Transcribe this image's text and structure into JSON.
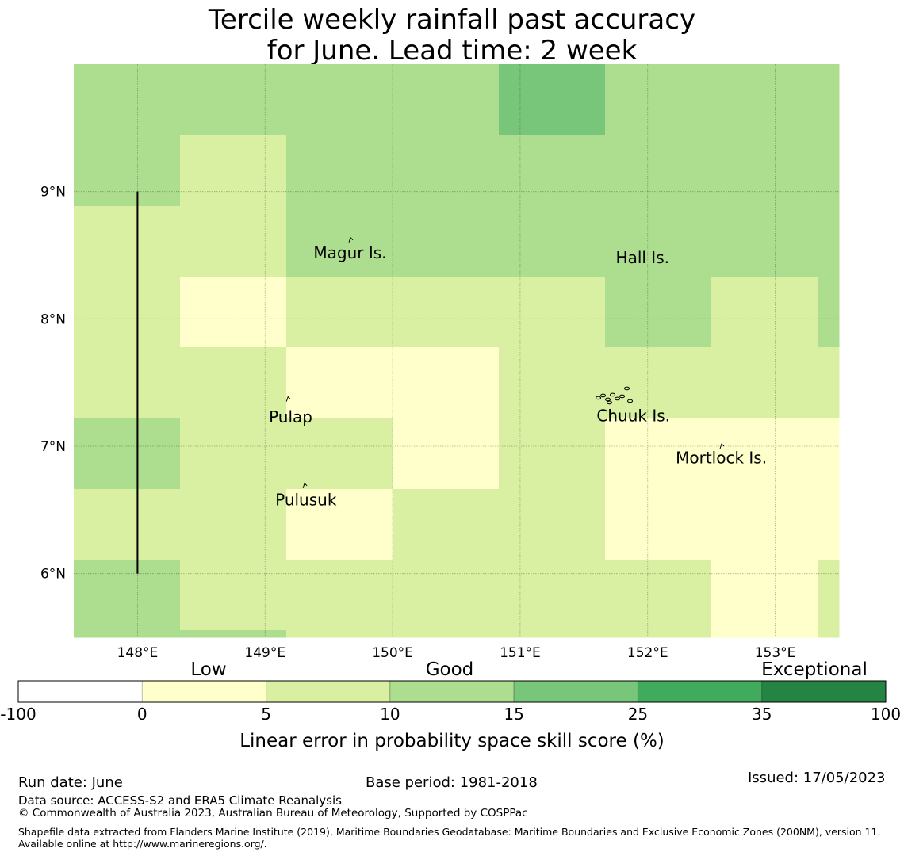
{
  "title": {
    "line1": "Tercile weekly rainfall past accuracy",
    "line2": "for June. Lead time: 2 week"
  },
  "map": {
    "lon_range": [
      147.5,
      153.5
    ],
    "lat_range": [
      5.5,
      10.0
    ],
    "lon_ticks": [
      {
        "value": 148,
        "label": "148°E"
      },
      {
        "value": 149,
        "label": "149°E"
      },
      {
        "value": 150,
        "label": "150°E"
      },
      {
        "value": 151,
        "label": "151°E"
      },
      {
        "value": 152,
        "label": "152°E"
      },
      {
        "value": 153,
        "label": "153°E"
      }
    ],
    "lat_ticks": [
      {
        "value": 9,
        "label": "9°N"
      },
      {
        "value": 8,
        "label": "8°N"
      },
      {
        "value": 7,
        "label": "7°N"
      },
      {
        "value": 6,
        "label": "6°N"
      }
    ],
    "grid_lons": [
      147.5,
      148.333,
      149.167,
      150.0,
      150.833,
      151.667,
      152.5,
      153.333,
      153.5
    ],
    "grid_lats": [
      10.0,
      9.444,
      8.889,
      8.333,
      7.778,
      7.222,
      6.667,
      6.111,
      5.556,
      5.5
    ],
    "skill_grid": [
      [
        3,
        3,
        3,
        3,
        4,
        3,
        3,
        3
      ],
      [
        3,
        2,
        3,
        3,
        3,
        3,
        3,
        3
      ],
      [
        2,
        2,
        3,
        3,
        3,
        3,
        3,
        3
      ],
      [
        2,
        1,
        2,
        2,
        2,
        3,
        2,
        3
      ],
      [
        2,
        2,
        1,
        1,
        2,
        2,
        2,
        2
      ],
      [
        3,
        2,
        2,
        1,
        2,
        1,
        1,
        1
      ],
      [
        2,
        2,
        1,
        2,
        2,
        1,
        1,
        1
      ],
      [
        3,
        2,
        2,
        2,
        2,
        2,
        1,
        2
      ],
      [
        3,
        3,
        2,
        2,
        2,
        2,
        1,
        2
      ]
    ],
    "boundary_line": {
      "lon": 148.0,
      "lat_from": 6.0,
      "lat_to": 9.0
    },
    "places": [
      {
        "name": "Magur Is.",
        "lon": 149.38,
        "lat": 8.52,
        "mark_lon": 149.67,
        "mark_lat": 8.62
      },
      {
        "name": "Hall Is.",
        "lon": 151.75,
        "lat": 8.48,
        "mark_lon": null,
        "mark_lat": null
      },
      {
        "name": "Pulap",
        "lon": 149.03,
        "lat": 7.23,
        "mark_lon": 149.18,
        "mark_lat": 7.37
      },
      {
        "name": "Chuuk Is.",
        "lon": 151.6,
        "lat": 7.24,
        "mark_lon": 151.75,
        "mark_lat": 7.38
      },
      {
        "name": "Mortlock Is.",
        "lon": 152.22,
        "lat": 6.91,
        "mark_lon": 152.58,
        "mark_lat": 7.0
      },
      {
        "name": "Pulusuk",
        "lon": 149.08,
        "lat": 6.58,
        "mark_lon": 149.31,
        "mark_lat": 6.69
      }
    ]
  },
  "colorbar": {
    "categories": [
      {
        "label": "Low",
        "position": "center-of-bins-1-2"
      },
      {
        "label": "Good",
        "position": "center"
      },
      {
        "label": "Exceptional",
        "position": "right"
      }
    ],
    "bins": [
      {
        "from": -100,
        "to": 0,
        "color": "#ffffff"
      },
      {
        "from": 0,
        "to": 5,
        "color": "#ffffcc"
      },
      {
        "from": 5,
        "to": 10,
        "color": "#d9f0a3"
      },
      {
        "from": 10,
        "to": 15,
        "color": "#addd8e"
      },
      {
        "from": 15,
        "to": 25,
        "color": "#78c679"
      },
      {
        "from": 25,
        "to": 35,
        "color": "#41ab5d"
      },
      {
        "from": 35,
        "to": 100,
        "color": "#238443"
      }
    ],
    "tick_labels": [
      "-100",
      "0",
      "5",
      "10",
      "15",
      "25",
      "35",
      "100"
    ],
    "label": "Linear error in probability space skill score (%)"
  },
  "footer": {
    "run_date": "Run date: June",
    "base_period": "Base period: 1981-2018",
    "issued": "Issued: 17/05/2023",
    "data_source": "Data source: ACCESS-S2 and ERA5 Climate Reanalysis",
    "copyright": "© Commonwealth of Australia 2023, Australian Bureau of Meteorology, Supported by COSPPac",
    "shapefile": "Shapefile data extracted from Flanders Marine Institute (2019), Maritime Boundaries Geodatabase: Maritime Boundaries and Exclusive Economic Zones (200NM), version 11. Available online at http://www.marineregions.org/."
  }
}
